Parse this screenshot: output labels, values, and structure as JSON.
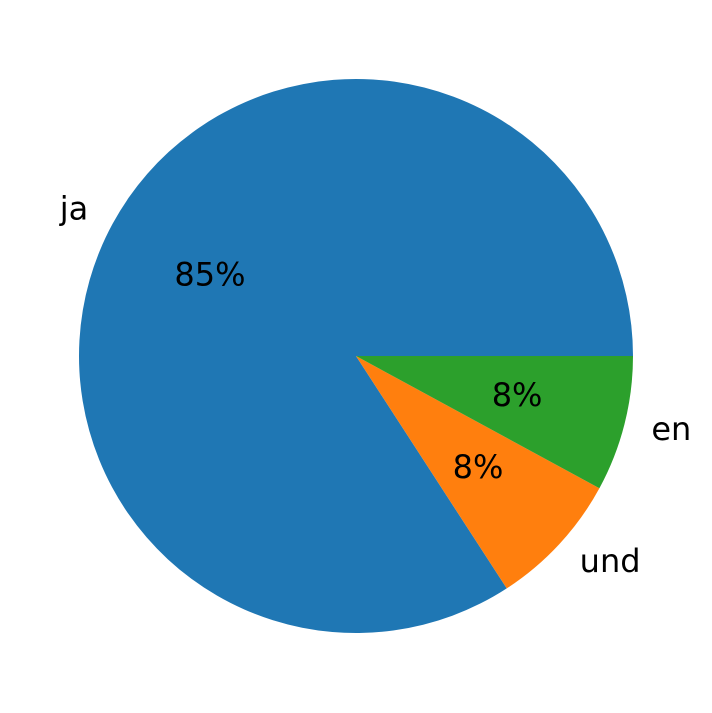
{
  "chart_data": {
    "type": "pie",
    "categories": [
      "ja",
      "und",
      "en"
    ],
    "values": [
      85,
      8,
      8
    ],
    "value_labels": [
      "85%",
      "8%",
      "8%"
    ],
    "colors": [
      "#1f77b4",
      "#ff7f0e",
      "#2ca02c"
    ],
    "start_angle": 0,
    "counterclockwise": true
  }
}
